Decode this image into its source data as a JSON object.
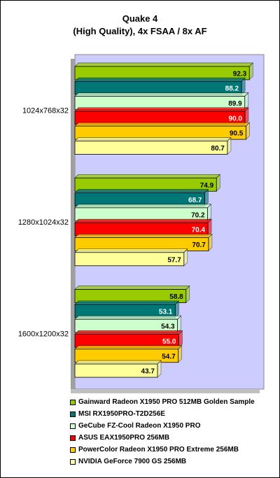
{
  "chart_data": {
    "type": "bar",
    "orientation": "horizontal",
    "title": "Quake 4",
    "subtitle": "(High Quality), 4x FSAA / 8x AF",
    "categories": [
      "1024x768x32",
      "1280x1024x32",
      "1600x1200x32"
    ],
    "xlim": [
      0,
      100
    ],
    "grid": false,
    "legend_position": "bottom",
    "plot_background": "#ccccff",
    "series": [
      {
        "name": "Gainward Radeon X1950 PRO 512MB Golden Sample",
        "color": "#99cc00",
        "label_color": "#000000",
        "values": [
          92.3,
          74.9,
          58.8
        ]
      },
      {
        "name": "MSI RX1950PRO-T2D256E",
        "color": "#007777",
        "label_color": "#ffffff",
        "values": [
          88.2,
          68.7,
          53.1
        ]
      },
      {
        "name": "GeCube FZ-Cool Radeon X1950 PRO",
        "color": "#ccffcc",
        "label_color": "#000000",
        "values": [
          89.9,
          70.2,
          54.3
        ]
      },
      {
        "name": "ASUS EAX1950PRO 256MB",
        "color": "#ff0000",
        "label_color": "#ffffff",
        "values": [
          90.0,
          70.4,
          55.0
        ]
      },
      {
        "name": "PowerColor Radeon X1950 PRO Extreme 256MB",
        "color": "#ffcc00",
        "label_color": "#000000",
        "values": [
          90.5,
          70.7,
          54.7
        ]
      },
      {
        "name": "NVIDIA GeForce 7900 GS 256MB",
        "color": "#ffff99",
        "label_color": "#000000",
        "values": [
          80.7,
          57.7,
          43.7
        ]
      }
    ]
  }
}
